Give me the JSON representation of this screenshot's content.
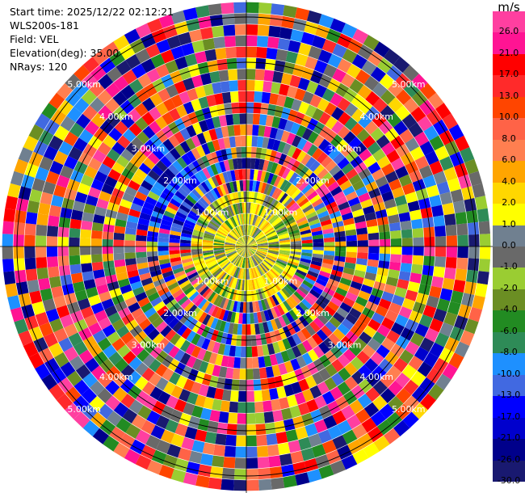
{
  "info": {
    "start_time": "Start time: 2025/12/22 02:12:21",
    "instrument": "WLS200s-181",
    "field": "Field: VEL",
    "elevation": "Elevation(deg): 35.00",
    "nrays": "NRays: 120"
  },
  "colorbar": {
    "unit": "m/s",
    "ticks": [
      "26.0",
      "21.0",
      "17.0",
      "13.0",
      "10.0",
      "8.0",
      "6.0",
      "4.0",
      "2.0",
      "1.0",
      "0.0",
      "-1.0",
      "-2.0",
      "-4.0",
      "-6.0",
      "-8.0",
      "-10.0",
      "-13.0",
      "-17.0",
      "-21.0",
      "-26.0",
      "-30.0"
    ],
    "colors": [
      "#ff3fa0",
      "#ff1493",
      "#ff0000",
      "#ff2a2a",
      "#ff4500",
      "#ff6347",
      "#ff7f50",
      "#ffa500",
      "#ffd700",
      "#ffff00",
      "#708090",
      "#696969",
      "#9acd32",
      "#6b8e23",
      "#228b22",
      "#2e8b57",
      "#1e90ff",
      "#4169e1",
      "#0000ff",
      "#0000cd",
      "#00008b",
      "#191970"
    ]
  },
  "range_rings": {
    "labels": [
      "1.00km",
      "2.00km",
      "3.00km",
      "4.00km",
      "5.00km"
    ]
  },
  "ppi": {
    "nrays": 120,
    "ngates": 22,
    "max_range_km": 5.6
  }
}
